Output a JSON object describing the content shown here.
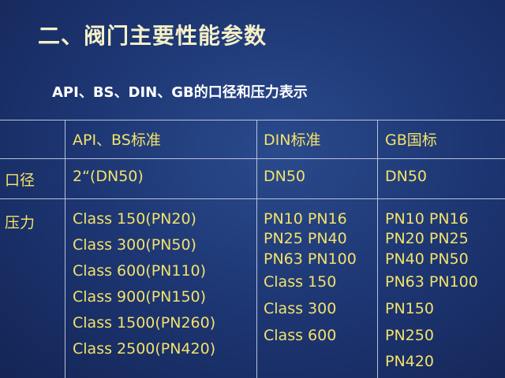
{
  "title": "二、阀门主要性能参数",
  "subtitle": "API、BS、DIN、GB的口径和压力表示",
  "table": {
    "header": [
      "API、BS标准",
      "DIN标准",
      "GB国标"
    ],
    "rows": [
      {
        "label": "口径",
        "cells": [
          [
            "2“(DN50)"
          ],
          [
            "DN50"
          ],
          [
            "DN50"
          ]
        ]
      },
      {
        "label": "压力",
        "cells": [
          [
            "Class 150(PN20)",
            "Class 300(PN50)",
            "Class 600(PN110)",
            "Class 900(PN150)",
            "Class 1500(PN260)",
            "Class 2500(PN420)"
          ],
          [
            "PN10 PN16",
            "PN25 PN40",
            "PN63 PN100",
            "Class 150",
            "Class 300",
            "Class 600"
          ],
          [
            "PN10 PN16",
            "PN20 PN25",
            "PN40 PN50",
            "PN63 PN100",
            "PN150",
            "PN250",
            "PN420"
          ]
        ]
      }
    ]
  }
}
